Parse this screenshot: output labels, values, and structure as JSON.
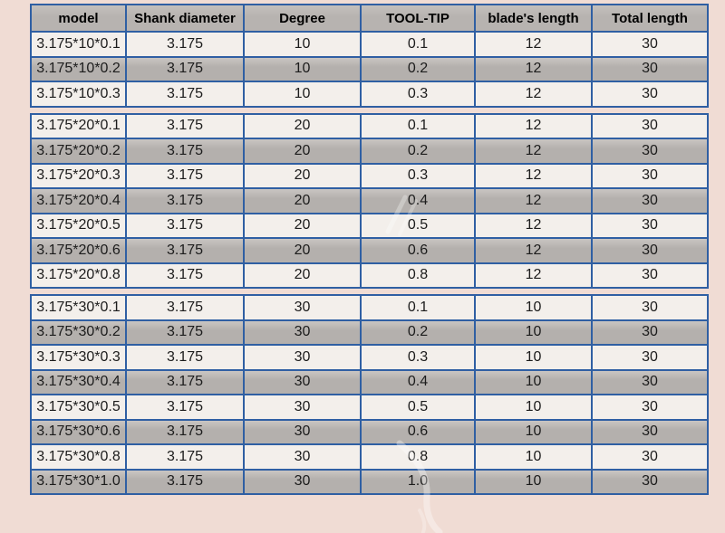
{
  "theme": {
    "page_background": "#f0dcd4",
    "table_border": "#2f5fa3",
    "header_background": "#b7b3b0",
    "row_light_background": "#f3efeb",
    "row_dark_background": "#b4b0ad",
    "text_color": "#1c1c1c"
  },
  "table": {
    "columns": [
      "model",
      "Shank diameter",
      "Degree",
      "TOOL-TIP",
      "blade's length",
      "Total length"
    ],
    "groups": [
      {
        "rows": [
          [
            "3.175*10*0.1",
            "3.175",
            "10",
            "0.1",
            "12",
            "30"
          ],
          [
            "3.175*10*0.2",
            "3.175",
            "10",
            "0.2",
            "12",
            "30"
          ],
          [
            "3.175*10*0.3",
            "3.175",
            "10",
            "0.3",
            "12",
            "30"
          ]
        ]
      },
      {
        "rows": [
          [
            "3.175*20*0.1",
            "3.175",
            "20",
            "0.1",
            "12",
            "30"
          ],
          [
            "3.175*20*0.2",
            "3.175",
            "20",
            "0.2",
            "12",
            "30"
          ],
          [
            "3.175*20*0.3",
            "3.175",
            "20",
            "0.3",
            "12",
            "30"
          ],
          [
            "3.175*20*0.4",
            "3.175",
            "20",
            "0.4",
            "12",
            "30"
          ],
          [
            "3.175*20*0.5",
            "3.175",
            "20",
            "0.5",
            "12",
            "30"
          ],
          [
            "3.175*20*0.6",
            "3.175",
            "20",
            "0.6",
            "12",
            "30"
          ],
          [
            "3.175*20*0.8",
            "3.175",
            "20",
            "0.8",
            "12",
            "30"
          ]
        ]
      },
      {
        "rows": [
          [
            "3.175*30*0.1",
            "3.175",
            "30",
            "0.1",
            "10",
            "30"
          ],
          [
            "3.175*30*0.2",
            "3.175",
            "30",
            "0.2",
            "10",
            "30"
          ],
          [
            "3.175*30*0.3",
            "3.175",
            "30",
            "0.3",
            "10",
            "30"
          ],
          [
            "3.175*30*0.4",
            "3.175",
            "30",
            "0.4",
            "10",
            "30"
          ],
          [
            "3.175*30*0.5",
            "3.175",
            "30",
            "0.5",
            "10",
            "30"
          ],
          [
            "3.175*30*0.6",
            "3.175",
            "30",
            "0.6",
            "10",
            "30"
          ],
          [
            "3.175*30*0.8",
            "3.175",
            "30",
            "0.8",
            "10",
            "30"
          ],
          [
            "3.175*30*1.0",
            "3.175",
            "30",
            "1.0",
            "10",
            "30"
          ]
        ]
      }
    ]
  }
}
